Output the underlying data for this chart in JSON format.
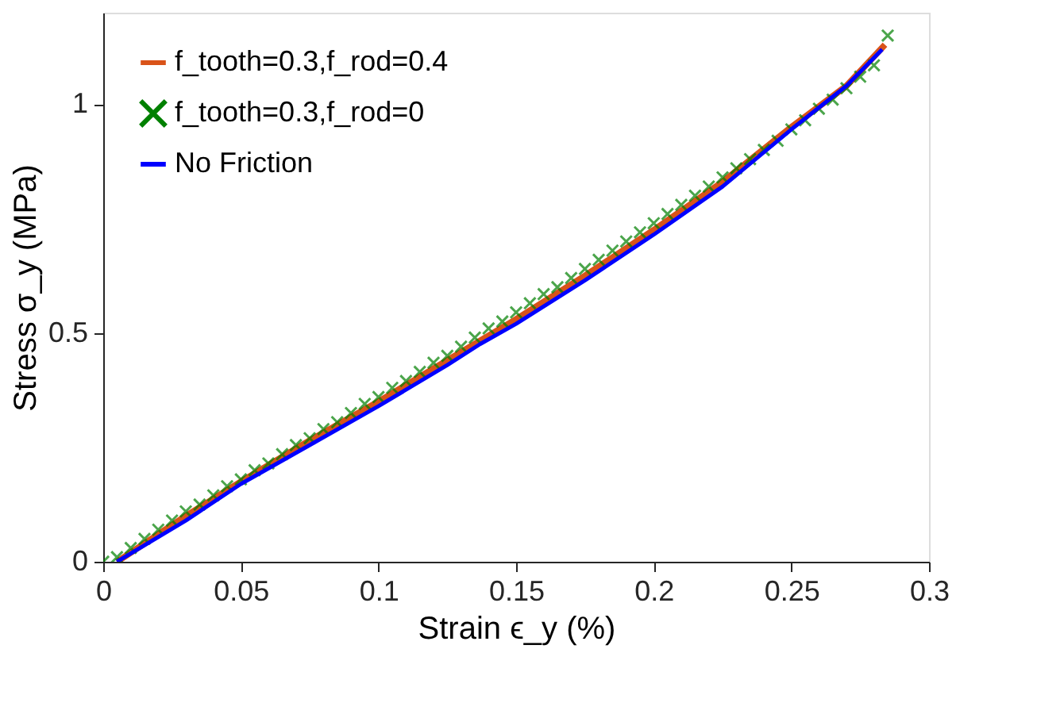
{
  "chart_data": {
    "type": "line",
    "xlabel": "Strain ϵ_y (%)",
    "ylabel": "Stress σ_y (MPa)",
    "xlim": [
      0,
      0.3
    ],
    "ylim": [
      0,
      1.2
    ],
    "xticks": [
      0,
      0.05,
      0.1,
      0.15,
      0.2,
      0.25,
      0.3
    ],
    "yticks": [
      0,
      0.5,
      1
    ],
    "grid": false,
    "legend": "top left",
    "series": [
      {
        "name": "f_tooth=0.3,f_rod=0.4",
        "color": "#d95319",
        "x": [
          0.005,
          0.03,
          0.05,
          0.075,
          0.1,
          0.125,
          0.15,
          0.175,
          0.2,
          0.225,
          0.25,
          0.27,
          0.284
        ],
        "values": [
          0,
          0.1,
          0.175,
          0.265,
          0.35,
          0.44,
          0.53,
          0.625,
          0.725,
          0.83,
          0.95,
          1.04,
          1.13
        ]
      },
      {
        "name": "f_tooth=0.3,f_rod=0",
        "color": "#008000",
        "type": "scatter",
        "marker": "cross",
        "x": [
          0,
          0.005,
          0.01,
          0.015,
          0.02,
          0.025,
          0.03,
          0.035,
          0.04,
          0.045,
          0.05,
          0.055,
          0.06,
          0.065,
          0.07,
          0.075,
          0.08,
          0.085,
          0.09,
          0.095,
          0.1,
          0.105,
          0.11,
          0.115,
          0.12,
          0.125,
          0.13,
          0.135,
          0.14,
          0.145,
          0.15,
          0.155,
          0.16,
          0.165,
          0.17,
          0.175,
          0.18,
          0.185,
          0.19,
          0.195,
          0.2,
          0.205,
          0.21,
          0.215,
          0.22,
          0.225,
          0.23,
          0.235,
          0.24,
          0.245,
          0.25,
          0.255,
          0.26,
          0.265,
          0.27,
          0.275,
          0.28,
          0.285
        ],
        "values": [
          0,
          0.01,
          0.03,
          0.05,
          0.07,
          0.09,
          0.11,
          0.125,
          0.145,
          0.165,
          0.18,
          0.2,
          0.215,
          0.235,
          0.255,
          0.27,
          0.29,
          0.305,
          0.325,
          0.345,
          0.36,
          0.38,
          0.395,
          0.415,
          0.435,
          0.45,
          0.47,
          0.49,
          0.51,
          0.525,
          0.545,
          0.565,
          0.585,
          0.6,
          0.62,
          0.64,
          0.66,
          0.68,
          0.7,
          0.72,
          0.74,
          0.76,
          0.78,
          0.8,
          0.82,
          0.84,
          0.86,
          0.88,
          0.9,
          0.92,
          0.945,
          0.965,
          0.99,
          1.01,
          1.035,
          1.06,
          1.085,
          1.15
        ]
      },
      {
        "name": "No Friction",
        "color": "#0000ff",
        "x": [
          0.005,
          0.03,
          0.05,
          0.075,
          0.1,
          0.125,
          0.137,
          0.15,
          0.175,
          0.2,
          0.225,
          0.25,
          0.27,
          0.283
        ],
        "values": [
          0,
          0.09,
          0.17,
          0.255,
          0.34,
          0.43,
          0.476,
          0.52,
          0.615,
          0.715,
          0.82,
          0.945,
          1.04,
          1.12
        ]
      }
    ]
  }
}
